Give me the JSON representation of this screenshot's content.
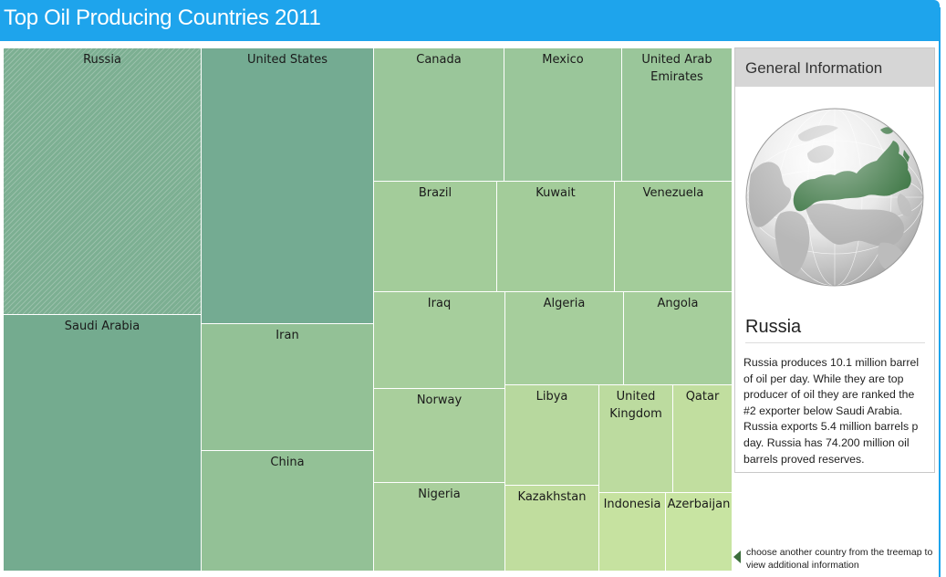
{
  "header": {
    "title": "Top Oil Producing Countries 2011"
  },
  "colors": {
    "title_bar": "#1ea4ec",
    "selected_highlight": "#2d6b35"
  },
  "treemap": {
    "selected": "Russia",
    "tiles": [
      {
        "name": "Russia",
        "color": "#7caf92"
      },
      {
        "name": "Saudi Arabia",
        "color": "#74ab8f"
      },
      {
        "name": "United States",
        "color": "#74ab92"
      },
      {
        "name": "Iran",
        "color": "#93c196"
      },
      {
        "name": "China",
        "color": "#93c196"
      },
      {
        "name": "Canada",
        "color": "#9ac69a"
      },
      {
        "name": "Mexico",
        "color": "#9ac69a"
      },
      {
        "name": "United Arab Emirates",
        "color": "#9ac69a"
      },
      {
        "name": "Brazil",
        "color": "#a3cc9a"
      },
      {
        "name": "Kuwait",
        "color": "#a3cc9a"
      },
      {
        "name": "Venezuela",
        "color": "#a3cc9a"
      },
      {
        "name": "Iraq",
        "color": "#a6ce9c"
      },
      {
        "name": "Algeria",
        "color": "#a6ce9c"
      },
      {
        "name": "Angola",
        "color": "#a6ce9c"
      },
      {
        "name": "Norway",
        "color": "#a9cf9c"
      },
      {
        "name": "Nigeria",
        "color": "#a9cf9c"
      },
      {
        "name": "Libya",
        "color": "#b7d89e"
      },
      {
        "name": "United Kingdom",
        "color": "#bcdb9f"
      },
      {
        "name": "Qatar",
        "color": "#c1de9f"
      },
      {
        "name": "Kazakhstan",
        "color": "#c0dd9e"
      },
      {
        "name": "Indonesia",
        "color": "#c6e2a0"
      },
      {
        "name": "Azerbaijan",
        "color": "#c8e4a2"
      }
    ]
  },
  "info": {
    "header": "General Information",
    "country": "Russia",
    "description": "Russia produces 10.1 million barrel of oil per day. While they are top producer of oil they are ranked the #2 exporter below Saudi Arabia. Russia exports 5.4 million barrels p day. Russia has 74.200 million oil barrels proved reserves."
  },
  "hint": {
    "text": "choose another country from the treemap to view additional information"
  }
}
